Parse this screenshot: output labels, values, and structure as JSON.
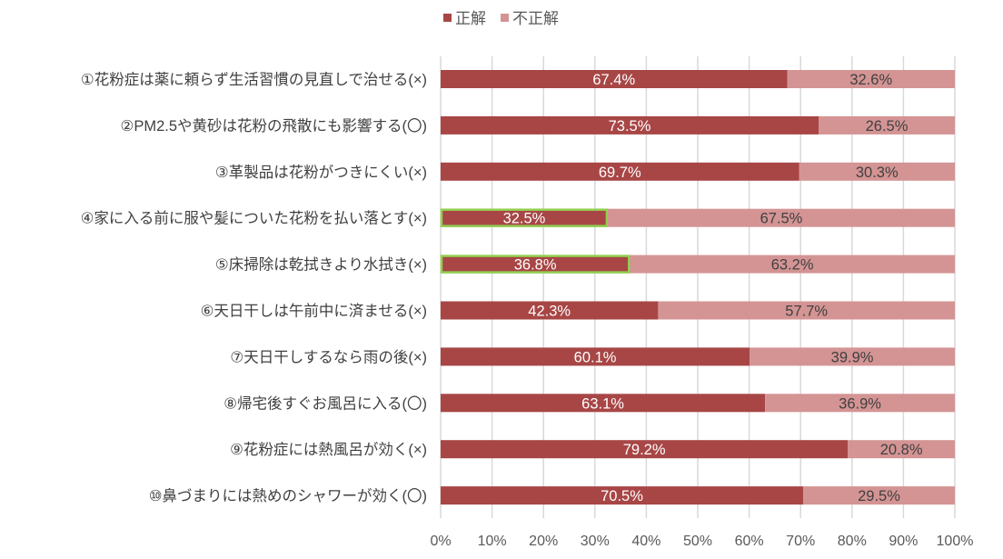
{
  "chart_data": {
    "type": "bar",
    "stacked": true,
    "orientation": "horizontal",
    "title": "",
    "xlabel": "",
    "ylabel": "",
    "xlim": [
      0,
      100
    ],
    "grid": true,
    "legend_position": "top",
    "categories": [
      "①花粉症は薬に頼らず生活習慣の見直しで治せる(×)",
      "②PM2.5や黄砂は花粉の飛散にも影響する(〇)",
      "③革製品は花粉がつきにくい(×)",
      "④家に入る前に服や髪についた花粉を払い落とす(×)",
      "⑤床掃除は乾拭きより水拭き(×)",
      "⑥天日干しは午前中に済ませる(×)",
      "⑦天日干しするなら雨の後(×)",
      "⑧帰宅後すぐお風呂に入る(〇)",
      "⑨花粉症には熱風呂が効く(×)",
      "⑩鼻づまりには熱めのシャワーが効く(〇)"
    ],
    "series": [
      {
        "name": "正解",
        "color": "#A84646",
        "values": [
          67.4,
          73.5,
          69.7,
          32.5,
          36.8,
          42.3,
          60.1,
          63.1,
          79.2,
          70.5
        ],
        "labels": [
          "67.4%",
          "73.5%",
          "69.7%",
          "32.5%",
          "36.8%",
          "42.3%",
          "60.1%",
          "63.1%",
          "79.2%",
          "70.5%"
        ]
      },
      {
        "name": "不正解",
        "color": "#D49494",
        "values": [
          32.6,
          26.5,
          30.3,
          67.5,
          63.2,
          57.7,
          39.9,
          36.9,
          20.8,
          29.5
        ],
        "labels": [
          "32.6%",
          "26.5%",
          "30.3%",
          "67.5%",
          "63.2%",
          "57.7%",
          "39.9%",
          "36.9%",
          "20.8%",
          "29.5%"
        ]
      }
    ],
    "highlighted_categories": [
      3,
      4
    ],
    "highlight_color": "#92D050",
    "xticks": [
      "0%",
      "10%",
      "20%",
      "30%",
      "40%",
      "50%",
      "60%",
      "70%",
      "80%",
      "90%",
      "100%"
    ]
  }
}
